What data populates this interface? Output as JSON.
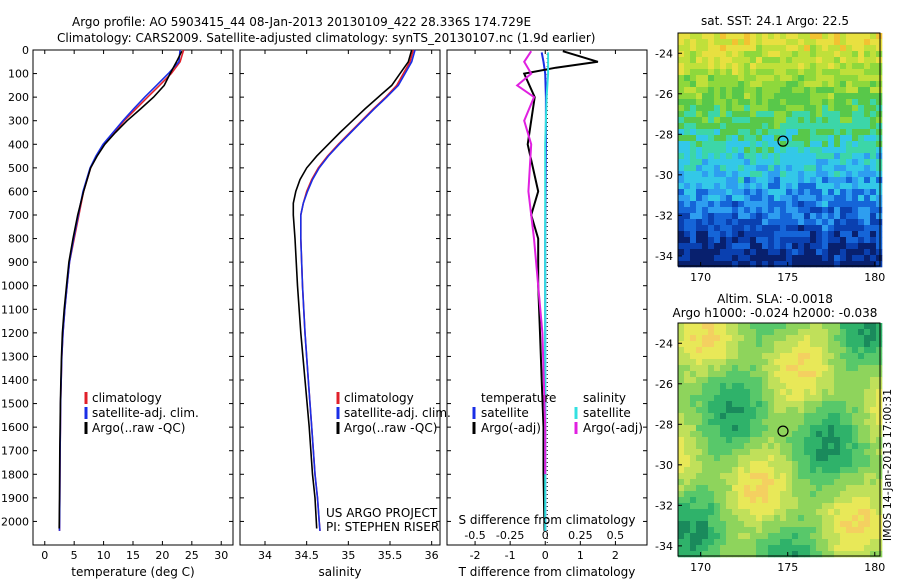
{
  "header": {
    "line1": "Argo profile: AO 5903415_44 08-Jan-2013 20130109_422 28.336S 174.729E",
    "line2": "Climatology: CARS2009. Satellite-adjusted climatology: synTS_20130107.nc (1.9d earlier)"
  },
  "project": {
    "line1": "US ARGO PROJECT",
    "line2": "PI: STEPHEN RISER"
  },
  "side_stamp": "IMOS 14-Jan-2013 17:00:31",
  "colors": {
    "climatology": "#e0202a",
    "satellite": "#1a2ee6",
    "argo": "#000000",
    "satellite_s": "#33e0e0",
    "argo_s": "#e020e0"
  },
  "legends": {
    "profile": [
      "climatology",
      "satellite-adj. clim.",
      "Argo(..raw -QC)"
    ],
    "diff_headers": [
      "temperature",
      "salinity"
    ],
    "diff_items": [
      "satellite",
      "Argo(-adj)",
      "satellite",
      "Argo(-adj)"
    ]
  },
  "maps": {
    "sst_title": "sat. SST: 24.1  Argo: 22.5",
    "sla_title1": "Altim. SLA: -0.0018",
    "sla_title2": "Argo h1000: -0.024 h2000: -0.038",
    "lat_ticks": [
      "-24",
      "-26",
      "-28",
      "-30",
      "-32",
      "-34"
    ],
    "lon_ticks": [
      "170",
      "175",
      "180"
    ],
    "float_lat": -28.336,
    "float_lon": 174.729
  },
  "chart_data": [
    {
      "type": "line",
      "xlabel": "temperature (deg C)",
      "ylabel": "",
      "xlim": [
        -2,
        32
      ],
      "ylim": [
        2100,
        0
      ],
      "x_ticks": [
        "0",
        "5",
        "10",
        "15",
        "20",
        "25",
        "30"
      ],
      "y_ticks": [
        "0",
        "100",
        "200",
        "300",
        "400",
        "500",
        "600",
        "700",
        "800",
        "900",
        "1000",
        "1100",
        "1200",
        "1300",
        "1400",
        "1500",
        "1600",
        "1700",
        "1800",
        "1900",
        "2000"
      ],
      "series": [
        {
          "name": "climatology",
          "x": [
            23.6,
            23.0,
            21.5,
            19.5,
            17.5,
            15.5,
            13.5,
            11.8,
            10.0,
            8.8,
            7.8,
            6.6,
            5.8,
            5.0,
            4.2,
            3.8,
            3.4,
            3.1,
            2.9,
            2.8,
            2.7,
            2.65,
            2.6,
            2.55,
            2.5
          ],
          "y": [
            0,
            50,
            100,
            150,
            200,
            250,
            300,
            350,
            400,
            450,
            500,
            600,
            700,
            800,
            900,
            1000,
            1100,
            1200,
            1300,
            1400,
            1500,
            1600,
            1700,
            1900,
            2040
          ]
        },
        {
          "name": "satellite-adj. clim.",
          "x": [
            23.0,
            22.8,
            21.0,
            19.0,
            17.0,
            15.1,
            13.3,
            11.6,
            9.9,
            8.7,
            7.7,
            6.5,
            5.7,
            4.9,
            4.2,
            3.8,
            3.4,
            3.1,
            2.9,
            2.8,
            2.7,
            2.65,
            2.6,
            2.55,
            2.5
          ],
          "y": [
            0,
            50,
            100,
            150,
            200,
            250,
            300,
            350,
            400,
            450,
            500,
            600,
            700,
            800,
            900,
            1000,
            1100,
            1200,
            1300,
            1400,
            1500,
            1600,
            1700,
            1900,
            2040
          ]
        },
        {
          "name": "Argo(..raw -QC)",
          "x": [
            23.3,
            22.4,
            21.3,
            20.3,
            18.5,
            16.3,
            14.0,
            12.0,
            10.2,
            8.9,
            7.8,
            6.6,
            5.6,
            4.8,
            4.1,
            3.7,
            3.3,
            3.0,
            2.85,
            2.75,
            2.65,
            2.6,
            2.55,
            2.5,
            2.45
          ],
          "y": [
            5,
            50,
            100,
            150,
            200,
            250,
            300,
            350,
            400,
            450,
            500,
            600,
            700,
            800,
            900,
            1000,
            1100,
            1200,
            1300,
            1400,
            1500,
            1600,
            1700,
            1900,
            2030
          ]
        }
      ]
    },
    {
      "type": "line",
      "xlabel": "salinity",
      "ylabel": "",
      "xlim": [
        33.7,
        36.1
      ],
      "ylim": [
        2100,
        0
      ],
      "x_ticks": [
        "34",
        "34.5",
        "35",
        "35.5",
        "36"
      ],
      "series": [
        {
          "name": "climatology",
          "x": [
            35.78,
            35.74,
            35.66,
            35.58,
            35.45,
            35.3,
            35.16,
            35.02,
            34.88,
            34.75,
            34.64,
            34.56,
            34.5,
            34.46,
            34.43,
            34.43,
            34.45,
            34.48,
            34.52,
            34.56,
            34.6,
            34.63,
            34.65,
            34.66
          ],
          "y": [
            0,
            50,
            100,
            150,
            200,
            250,
            300,
            350,
            400,
            450,
            500,
            550,
            600,
            650,
            700,
            800,
            1000,
            1200,
            1400,
            1600,
            1800,
            1900,
            2000,
            2040
          ]
        },
        {
          "name": "satellite-adj. clim.",
          "x": [
            35.8,
            35.76,
            35.68,
            35.6,
            35.46,
            35.31,
            35.17,
            35.03,
            34.89,
            34.76,
            34.65,
            34.57,
            34.51,
            34.46,
            34.43,
            34.43,
            34.45,
            34.48,
            34.52,
            34.56,
            34.6,
            34.63,
            34.65,
            34.66
          ],
          "y": [
            0,
            50,
            100,
            150,
            200,
            250,
            300,
            350,
            400,
            450,
            500,
            550,
            600,
            650,
            700,
            800,
            1000,
            1200,
            1400,
            1600,
            1800,
            1900,
            2000,
            2040
          ]
        },
        {
          "name": "Argo(..raw -QC)",
          "x": [
            35.76,
            35.72,
            35.62,
            35.52,
            35.36,
            35.2,
            35.05,
            34.9,
            34.76,
            34.62,
            34.5,
            34.42,
            34.37,
            34.34,
            34.34,
            34.36,
            34.39,
            34.43,
            34.48,
            34.53,
            34.57,
            34.6,
            34.62
          ],
          "y": [
            0,
            50,
            100,
            150,
            200,
            250,
            300,
            350,
            400,
            450,
            500,
            550,
            600,
            650,
            700,
            800,
            1000,
            1200,
            1400,
            1600,
            1800,
            1900,
            2030
          ]
        }
      ]
    },
    {
      "type": "line",
      "xlabel": "T difference from climatology",
      "xlabel_top": "S difference from climatology",
      "ylabel": "",
      "xlim": [
        -2.8,
        2.9
      ],
      "ylim": [
        2100,
        0
      ],
      "x_ticks": [
        "-2",
        "-1",
        "0",
        "1",
        "2"
      ],
      "x_ticks_s": [
        "-0.5",
        "-0.25",
        "0",
        "0.25",
        "0.5"
      ],
      "series": [
        {
          "name": "temperature satellite",
          "x": [
            -0.1,
            -0.05,
            0.0,
            0.02,
            0.02,
            0.01,
            0.0,
            0.0,
            0.0,
            0.0,
            0.0
          ],
          "y": [
            10,
            50,
            100,
            200,
            400,
            600,
            800,
            1000,
            1400,
            1800,
            2040
          ]
        },
        {
          "name": "temperature Argo(-adj)",
          "x": [
            0.5,
            1.5,
            0.3,
            -0.6,
            -0.3,
            -0.5,
            -0.2,
            -0.4,
            -0.2,
            -0.2,
            -0.15,
            -0.1,
            -0.05,
            -0.05,
            -0.02
          ],
          "y": [
            5,
            50,
            75,
            100,
            200,
            400,
            600,
            700,
            800,
            1000,
            1200,
            1400,
            1600,
            1800,
            2040
          ]
        },
        {
          "name": "salinity satellite",
          "x": [
            0.02,
            0.02,
            0.01,
            0.0,
            0.0,
            0.0,
            0.0,
            0.0
          ],
          "y": [
            10,
            100,
            200,
            400,
            800,
            1200,
            1600,
            2040
          ]
        },
        {
          "name": "salinity Argo(-adj)",
          "x": [
            -0.1,
            -0.15,
            -0.1,
            -0.2,
            -0.08,
            -0.15,
            -0.1,
            -0.12,
            -0.08,
            -0.05,
            -0.02,
            -0.01,
            0.0,
            0.0
          ],
          "y": [
            5,
            50,
            100,
            150,
            200,
            300,
            400,
            600,
            800,
            1000,
            1200,
            1400,
            1600,
            1800
          ]
        }
      ]
    }
  ]
}
